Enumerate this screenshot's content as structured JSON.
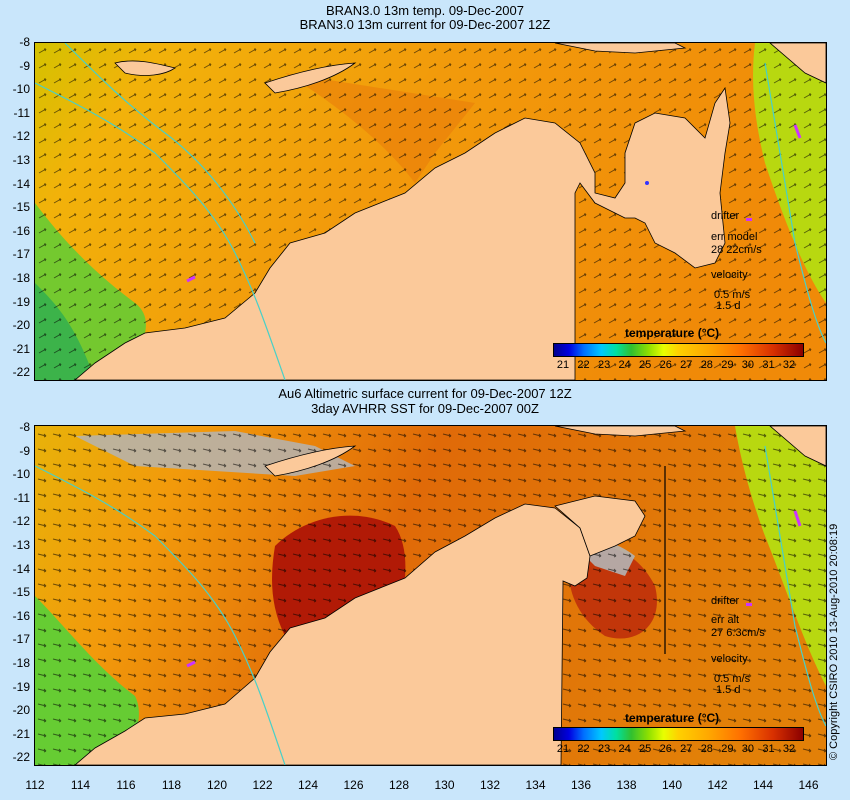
{
  "top": {
    "title_line1": "BRAN3.0 13m temp. 09-Dec-2007",
    "title_line2": "BRAN3.0 13m current for 09-Dec-2007 12Z",
    "drifter_label": "drifter",
    "err_label": "err model",
    "err_value": "28 22cm/s",
    "velocity_label": "velocity",
    "velocity_value": "0.5 m/s",
    "velocity_days": "1.5 d"
  },
  "bottom": {
    "title_line1": "Au6 Altimetric surface current for 09-Dec-2007 12Z",
    "title_line2": "3day AVHRR SST for 09-Dec-2007 00Z",
    "drifter_label": "drifter",
    "err_label": "err alt",
    "err_value": "27 6.3cm/s",
    "velocity_label": "velocity",
    "velocity_value": "0.5 m/s",
    "velocity_days": "1.5 d"
  },
  "legend": {
    "title": "temperature (°C)",
    "labels": [
      "21",
      "22",
      "23",
      "24",
      "25",
      "26",
      "27",
      "28",
      "29",
      "30",
      "31",
      "32"
    ]
  },
  "latitude_ticks": [
    "-8",
    "-9",
    "-10",
    "-11",
    "-12",
    "-13",
    "-14",
    "-15",
    "-16",
    "-17",
    "-18",
    "-19",
    "-20",
    "-21",
    "-22"
  ],
  "longitude_ticks": [
    "112",
    "114",
    "116",
    "118",
    "120",
    "122",
    "124",
    "126",
    "128",
    "130",
    "132",
    "134",
    "136",
    "138",
    "140",
    "142",
    "144",
    "146"
  ],
  "copyright": "© Copyright CSIRO 2010   13-Aug-2010 20:08:19",
  "colors": {
    "land": "#fbc99a",
    "ocean_warm": "#f29c0c",
    "ocean_hot": "#b11a06",
    "ocean_cool": "#66cc33",
    "contour": "#48d0c8",
    "drifter": "#cc33ff",
    "background": "#c9e6fb"
  }
}
